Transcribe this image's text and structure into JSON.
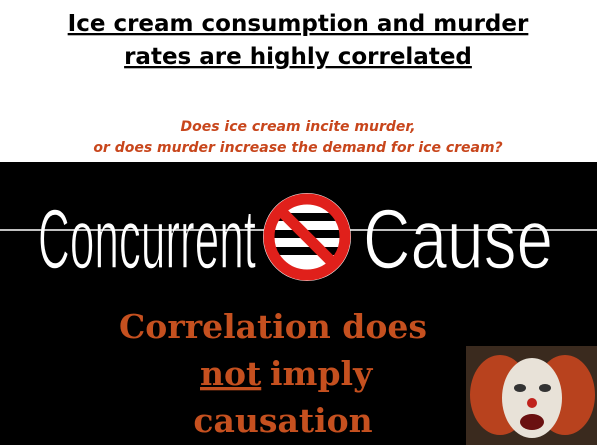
{
  "header": {
    "title_lines": [
      "Ice cream consumption and murder",
      "rates are highly correlated"
    ],
    "subtitle_lines": [
      "Does ice cream incite murder,",
      "or does murder increase the demand for ice cream?"
    ]
  },
  "banner": {
    "left": "Concurrent",
    "right": "Cause"
  },
  "tagline": {
    "line1": "Correlation does",
    "emphasis": "not",
    "line2_rest": "imply",
    "line3": "causation"
  }
}
